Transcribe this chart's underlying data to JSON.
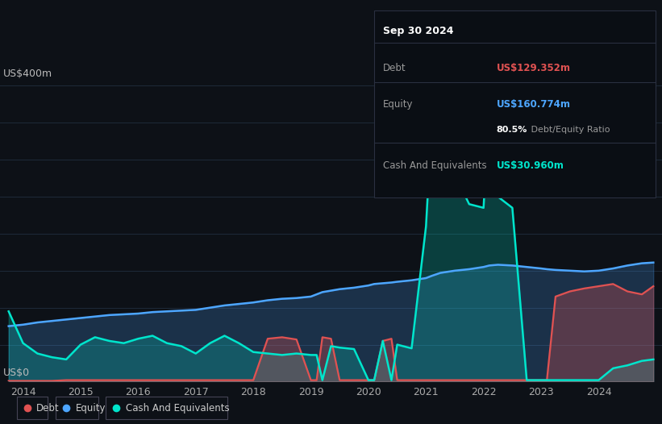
{
  "bg_color": "#0d1117",
  "plot_bg_color": "#0d1117",
  "grid_color": "#1e2a3a",
  "y_label": "US$400m",
  "y_zero_label": "US$0",
  "x_ticks": [
    2014,
    2015,
    2016,
    2017,
    2018,
    2019,
    2020,
    2021,
    2022,
    2023,
    2024
  ],
  "x_min": 2013.6,
  "x_max": 2025.1,
  "y_min": 0,
  "y_max": 430,
  "tooltip": {
    "date": "Sep 30 2024",
    "debt_label": "Debt",
    "debt_value": "US$129.352m",
    "equity_label": "Equity",
    "equity_value": "US$160.774m",
    "ratio_bold": "80.5%",
    "ratio_text": " Debt/Equity Ratio",
    "cash_label": "Cash And Equivalents",
    "cash_value": "US$30.960m"
  },
  "debt_color": "#e05252",
  "equity_color": "#4da6ff",
  "cash_color": "#00e5cc",
  "years": [
    2013.75,
    2014.0,
    2014.25,
    2014.5,
    2014.75,
    2015.0,
    2015.25,
    2015.5,
    2015.75,
    2016.0,
    2016.25,
    2016.5,
    2016.75,
    2017.0,
    2017.25,
    2017.5,
    2017.75,
    2018.0,
    2018.25,
    2018.5,
    2018.75,
    2019.0,
    2019.1,
    2019.2,
    2019.35,
    2019.5,
    2019.75,
    2020.0,
    2020.1,
    2020.25,
    2020.4,
    2020.5,
    2020.75,
    2021.0,
    2021.1,
    2021.25,
    2021.5,
    2021.75,
    2022.0,
    2022.1,
    2022.25,
    2022.5,
    2022.75,
    2023.0,
    2023.1,
    2023.25,
    2023.5,
    2023.75,
    2024.0,
    2024.25,
    2024.5,
    2024.75,
    2024.95
  ],
  "equity": [
    75,
    77,
    80,
    82,
    84,
    86,
    88,
    90,
    91,
    92,
    94,
    95,
    96,
    97,
    100,
    103,
    105,
    107,
    110,
    112,
    113,
    115,
    118,
    121,
    123,
    125,
    127,
    130,
    132,
    133,
    134,
    135,
    137,
    140,
    143,
    147,
    150,
    152,
    155,
    157,
    158,
    157,
    155,
    153,
    152,
    151,
    150,
    149,
    150,
    153,
    157,
    160,
    161
  ],
  "debt": [
    1,
    1,
    1,
    1,
    2,
    2,
    2,
    2,
    2,
    2,
    2,
    2,
    2,
    2,
    2,
    2,
    2,
    2,
    58,
    60,
    57,
    2,
    2,
    60,
    58,
    2,
    2,
    2,
    2,
    55,
    58,
    2,
    2,
    2,
    2,
    2,
    2,
    2,
    2,
    2,
    2,
    2,
    2,
    2,
    2,
    115,
    122,
    126,
    129,
    132,
    122,
    118,
    129
  ],
  "cash": [
    95,
    52,
    38,
    33,
    30,
    50,
    60,
    55,
    52,
    58,
    62,
    52,
    48,
    38,
    52,
    62,
    52,
    40,
    38,
    36,
    38,
    36,
    36,
    2,
    48,
    46,
    44,
    2,
    2,
    55,
    2,
    50,
    45,
    210,
    350,
    395,
    280,
    240,
    235,
    380,
    250,
    235,
    2,
    2,
    2,
    2,
    2,
    2,
    2,
    18,
    22,
    28,
    30
  ]
}
